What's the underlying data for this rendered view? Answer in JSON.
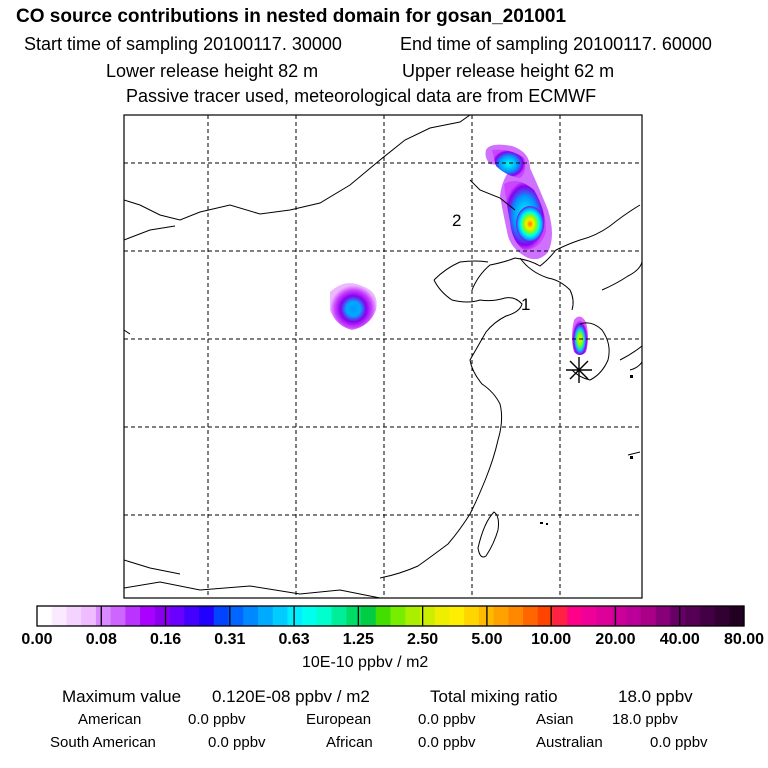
{
  "header": {
    "title": "CO  source contributions in nested domain for gosan_201001",
    "start_time": "Start time of sampling 20100117. 30000",
    "end_time": "End time of sampling 20100117. 60000",
    "lower_height": "Lower release height   82 m",
    "upper_height": "Upper release height   62 m",
    "note": "Passive tracer used, meteorological data are from ECMWF"
  },
  "map": {
    "labels": {
      "marker_1": "1",
      "marker_2": "2"
    },
    "plume_colors": [
      "#cc44ff",
      "#8800ee",
      "#0099ff",
      "#00ffee",
      "#88ff00",
      "#ffee00",
      "#ff7700"
    ]
  },
  "colorbar": {
    "tick_labels": [
      "0.00",
      "0.08",
      "0.16",
      "0.31",
      "0.63",
      "1.25",
      "2.50",
      "5.00",
      "10.00",
      "20.00",
      "40.00",
      "80.00"
    ],
    "units": "10E-10 ppbv / m2",
    "colors": [
      "#ffffff",
      "#fbe9ff",
      "#f5d3ff",
      "#efbdff",
      "#d98aff",
      "#cc66ff",
      "#bb33ff",
      "#aa00ff",
      "#8a00ee",
      "#6a00ff",
      "#4400ff",
      "#2200ff",
      "#0044ff",
      "#0066ff",
      "#0088ff",
      "#00aaff",
      "#00ccff",
      "#00eeff",
      "#00ffee",
      "#00ffcc",
      "#00ee99",
      "#00dd66",
      "#00cc44",
      "#44dd00",
      "#77ee00",
      "#aaee00",
      "#ccee00",
      "#eeee00",
      "#ffee00",
      "#ffd500",
      "#ffbb00",
      "#ffa200",
      "#ff8800",
      "#ff6600",
      "#ff4400",
      "#ff2244",
      "#ff0088",
      "#ee0099",
      "#dd0099",
      "#cc0099",
      "#bb0099",
      "#aa0088",
      "#880077",
      "#660066",
      "#550055",
      "#440044",
      "#330033",
      "#220022"
    ]
  },
  "footer": {
    "max_label": "Maximum value",
    "max_value": "0.120E-08 ppbv / m2",
    "total_label": "Total mixing ratio",
    "total_value": "18.0 ppbv",
    "sources": [
      {
        "name": "American",
        "value": "0.0 ppbv"
      },
      {
        "name": "European",
        "value": "0.0 ppbv"
      },
      {
        "name": "Asian",
        "value": "18.0 ppbv"
      },
      {
        "name": "South American",
        "value": "0.0 ppbv"
      },
      {
        "name": "African",
        "value": "0.0 ppbv"
      },
      {
        "name": "Australian",
        "value": "0.0 ppbv"
      }
    ]
  }
}
